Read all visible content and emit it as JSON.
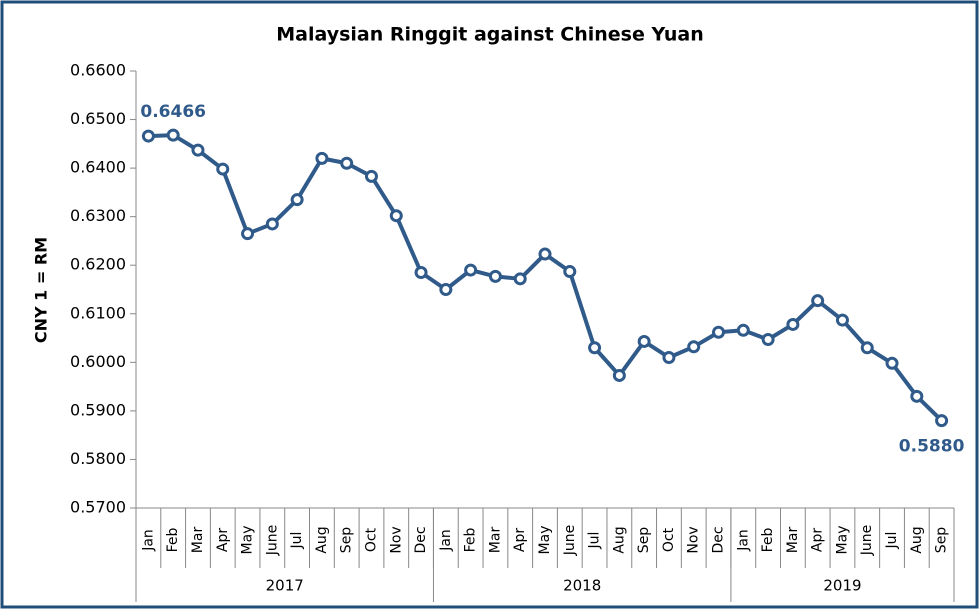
{
  "chart_data": {
    "type": "line",
    "title": "Malaysian Ringgit against Chinese Yuan",
    "y_label": "CNY 1 = RM",
    "categories": [
      "Jan",
      "Feb",
      "Mar",
      "Apr",
      "May",
      "June",
      "Jul",
      "Aug",
      "Sep",
      "Oct",
      "Nov",
      "Dec",
      "Jan",
      "Feb",
      "Mar",
      "Apr",
      "May",
      "June",
      "Jul",
      "Aug",
      "Sep",
      "Oct",
      "Nov",
      "Dec",
      "Jan",
      "Feb",
      "Mar",
      "Apr",
      "May",
      "June",
      "Jul",
      "Aug",
      "Sep"
    ],
    "groups": [
      {
        "label": "2017",
        "size": 12
      },
      {
        "label": "2018",
        "size": 12
      },
      {
        "label": "2019",
        "size": 9
      }
    ],
    "series": [
      {
        "name": "CNY 1 = RM",
        "color": "#2f5a8a",
        "values": [
          0.6466,
          0.6468,
          0.6437,
          0.6398,
          0.6265,
          0.6285,
          0.6335,
          0.642,
          0.641,
          0.6383,
          0.6302,
          0.6185,
          0.615,
          0.619,
          0.6177,
          0.6172,
          0.6223,
          0.6187,
          0.603,
          0.5973,
          0.6043,
          0.601,
          0.6032,
          0.6062,
          0.6066,
          0.6047,
          0.6078,
          0.6127,
          0.6087,
          0.603,
          0.5998,
          0.593,
          0.588
        ],
        "value_labels": [
          "0.6466",
          null,
          null,
          null,
          null,
          null,
          null,
          null,
          null,
          null,
          null,
          null,
          null,
          null,
          null,
          null,
          null,
          null,
          null,
          null,
          null,
          null,
          null,
          null,
          null,
          null,
          null,
          null,
          null,
          null,
          null,
          null,
          "0.5880"
        ]
      }
    ],
    "ylim": [
      0.57,
      0.66
    ],
    "yticks": [
      {
        "value": 0.57,
        "label": "0.5700"
      },
      {
        "value": 0.58,
        "label": "0.5800"
      },
      {
        "value": 0.59,
        "label": "0.5900"
      },
      {
        "value": 0.6,
        "label": "0.6000"
      },
      {
        "value": 0.61,
        "label": "0.6100"
      },
      {
        "value": 0.62,
        "label": "0.6200"
      },
      {
        "value": 0.63,
        "label": "0.6300"
      },
      {
        "value": 0.64,
        "label": "0.6400"
      },
      {
        "value": 0.65,
        "label": "0.6500"
      },
      {
        "value": 0.66,
        "label": "0.6600"
      }
    ],
    "grid": false
  }
}
